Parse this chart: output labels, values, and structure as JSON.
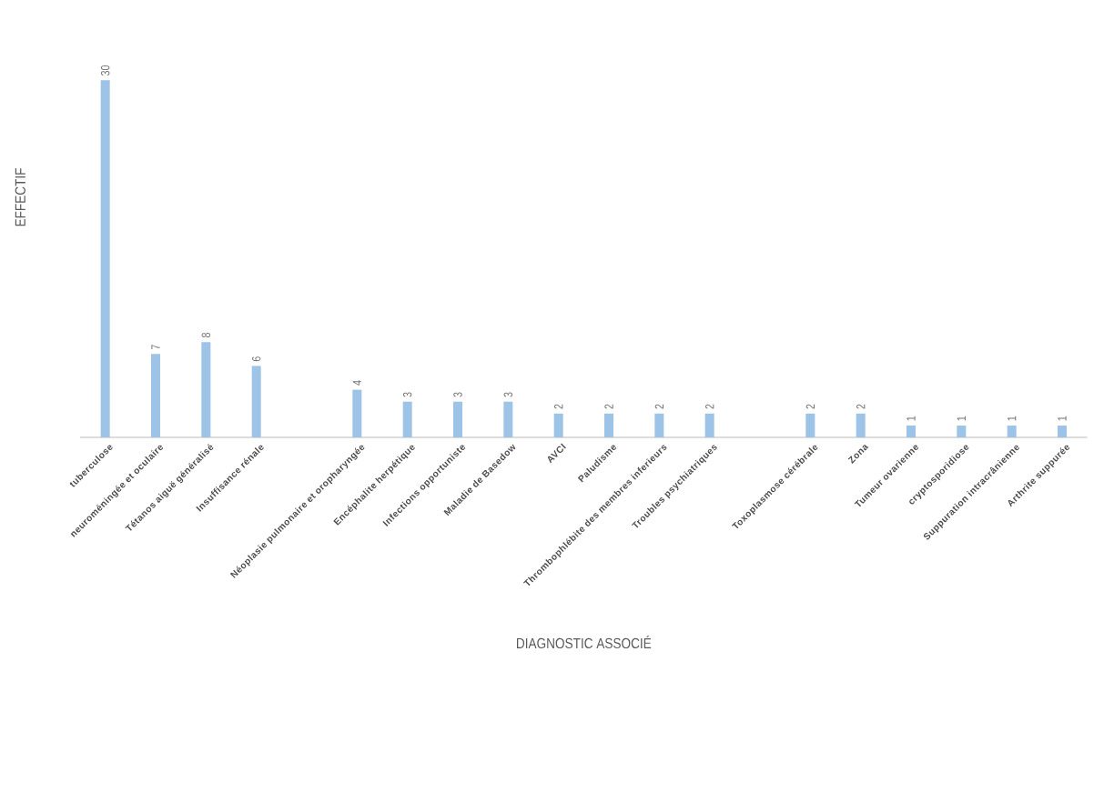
{
  "chart_data": {
    "type": "bar",
    "xlabel": "DIAGNOSTIC ASSOCIÉ",
    "ylabel": "EFFECTIF",
    "categories": [
      "tuberculose",
      "neuroméningée et oculaire",
      "Tétanos aiguë généralisé",
      "Insuffisance rénale",
      null,
      "Néoplasie pulmonaire et oropharyngée",
      "Encéphalite herpétique",
      "Infections opportuniste",
      "Maladie de Basedow",
      "AVCI",
      "Paludisme",
      "Thrombophlébite des membres inferieurs",
      "Troubles psychiatriques",
      null,
      "Toxoplasmose cérébrale",
      "Zona",
      "Tumeur ovarienne",
      "cryptosporidiose",
      "Suppuration intracrânienne",
      "Arthrite suppurée"
    ],
    "values": [
      30,
      7,
      8,
      6,
      null,
      4,
      3,
      3,
      3,
      2,
      2,
      2,
      2,
      null,
      2,
      2,
      1,
      1,
      1,
      1
    ],
    "color": "#9dc3e6",
    "data_labels": true,
    "grid": false
  }
}
